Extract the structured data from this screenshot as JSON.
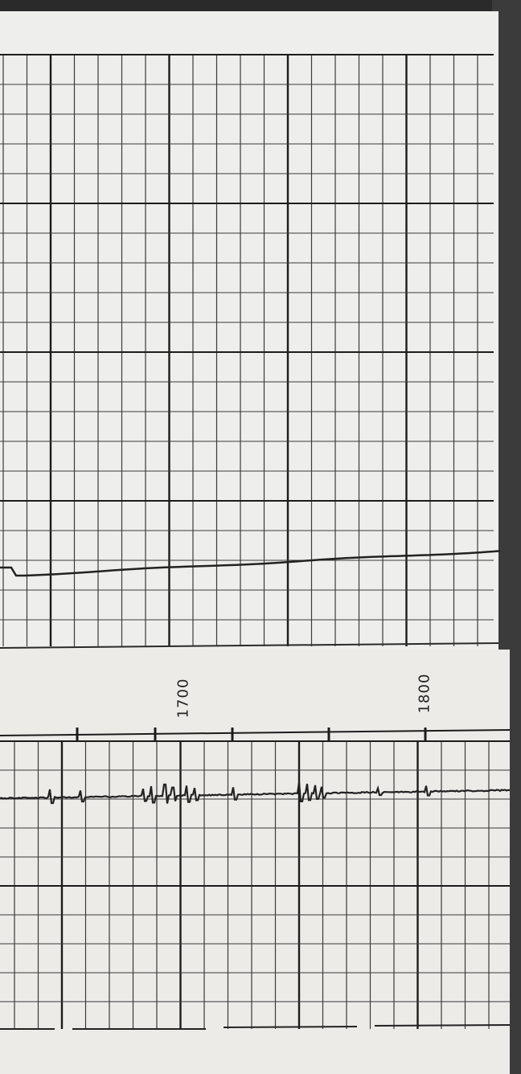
{
  "scene": {
    "subject": "chart-recorder-paper-strips",
    "colors": {
      "paper": "#eeeeec",
      "grid_major": "#1c1c1c",
      "grid_minor": "#3a3a3a",
      "trace": "#222222",
      "background_edge": "#3a3a3a"
    }
  },
  "strip_upper": {
    "trace": "baseline-drift"
  },
  "strip_lower": {
    "tick_labels": [
      "1700",
      "1800"
    ],
    "trace": "spike-bursts"
  }
}
